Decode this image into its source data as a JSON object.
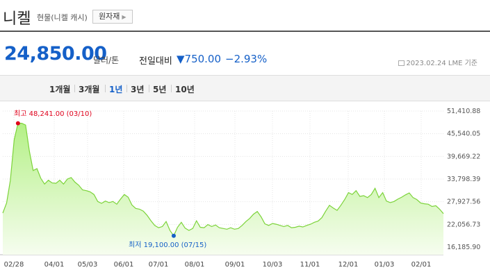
{
  "header": {
    "title": "니켈",
    "subtitle": "현물(니켈 캐시)",
    "raw_button": "원자재"
  },
  "quote": {
    "price": "24,850.00",
    "unit": "달러/톤",
    "compare_label": "전일대비",
    "change": "▼750.00",
    "change_pct": "−2.93%",
    "date": "2023.02.24",
    "source": "LME 기준"
  },
  "periods": [
    "1개월",
    "3개월",
    "1년",
    "3년",
    "5년",
    "10년"
  ],
  "active_period": "1년",
  "chart_data": {
    "type": "area",
    "x_ticks": [
      "02/28",
      "04/01",
      "05/03",
      "06/01",
      "07/01",
      "08/01",
      "09/01",
      "10/03",
      "11/01",
      "12/01",
      "01/03",
      "02/01"
    ],
    "y_ticks": [
      "51,410.88",
      "45,540.05",
      "39,669.22",
      "33,798.39",
      "27,927.56",
      "22,056.73",
      "16,185.90"
    ],
    "ylim": [
      16185.9,
      51410.88
    ],
    "series": [
      {
        "values": [
          25000,
          27600,
          33500,
          44000,
          48241,
          48241,
          47800,
          41000,
          36000,
          36500,
          34000,
          32500,
          33500,
          32800,
          32700,
          33500,
          32500,
          33800,
          34200,
          33000,
          32200,
          31000,
          30800,
          30500,
          29800,
          28000,
          27500,
          28100,
          27700,
          28000,
          27300,
          28600,
          29800,
          29100,
          27100,
          26200,
          26000,
          25500,
          24400,
          23000,
          21800,
          21200,
          21500,
          22800,
          20500,
          19100,
          21300,
          22600,
          21100,
          20500,
          21000,
          23000,
          21300,
          21200,
          22000,
          21500,
          21900,
          21200,
          21000,
          20800,
          21200,
          20800,
          21000,
          21800,
          22800,
          23600,
          24700,
          25400,
          24000,
          22200,
          21800,
          22300,
          22100,
          21800,
          21500,
          21800,
          21200,
          21300,
          21600,
          21400,
          21800,
          22100,
          22600,
          22900,
          23800,
          25500,
          27000,
          26300,
          25700,
          27000,
          28500,
          30300,
          29800,
          30800,
          29300,
          29500,
          29000,
          29800,
          31400,
          29000,
          30300,
          28100,
          27700,
          28000,
          28600,
          29100,
          29700,
          30200,
          29000,
          28500,
          27600,
          27400,
          27300,
          26700,
          26900,
          26000,
          24850
        ]
      }
    ],
    "annotations": {
      "high_label": "최고",
      "high_value": "48,241.00 (03/10)",
      "low_label": "최저",
      "low_value": "19,100.00 (07/15)"
    },
    "colors": {
      "line": "#7cd33a",
      "fill_top": "#b4f086",
      "fill_bottom": "#f6fdef",
      "high": "#e0001b",
      "low": "#1560c8"
    },
    "grid": true
  }
}
